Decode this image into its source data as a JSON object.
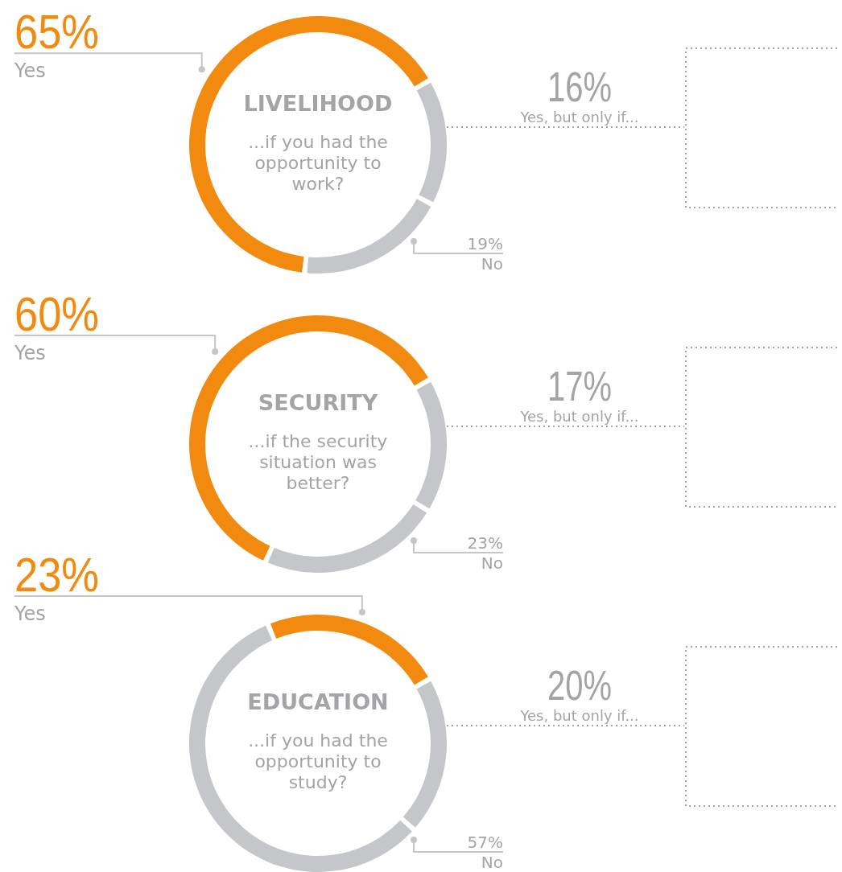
{
  "chart_data": [
    {
      "type": "donut",
      "title": "LIVELIHOOD",
      "subtitle": "...if you had the opportunity to work?",
      "categories": [
        "Yes",
        "Yes, but only if...",
        "No"
      ],
      "values": [
        65,
        16,
        19
      ],
      "value_labels": [
        "65%",
        "16%",
        "19%"
      ],
      "colors": [
        "#f38a10",
        "#c5c6c9",
        "#c5c6c9"
      ]
    },
    {
      "type": "donut",
      "title": "SECURITY",
      "subtitle": "...if the security situation was better?",
      "categories": [
        "Yes",
        "Yes, but only if...",
        "No"
      ],
      "values": [
        60,
        17,
        23
      ],
      "value_labels": [
        "60%",
        "17%",
        "23%"
      ],
      "colors": [
        "#f38a10",
        "#c5c6c9",
        "#c5c6c9"
      ]
    },
    {
      "type": "donut",
      "title": "EDUCATION",
      "subtitle": "...if you had the opportunity to study?",
      "categories": [
        "Yes",
        "Yes, but only if...",
        "No"
      ],
      "values": [
        23,
        20,
        57
      ],
      "value_labels": [
        "23%",
        "20%",
        "57%"
      ],
      "colors": [
        "#f38a10",
        "#c5c6c9",
        "#c5c6c9"
      ]
    }
  ]
}
